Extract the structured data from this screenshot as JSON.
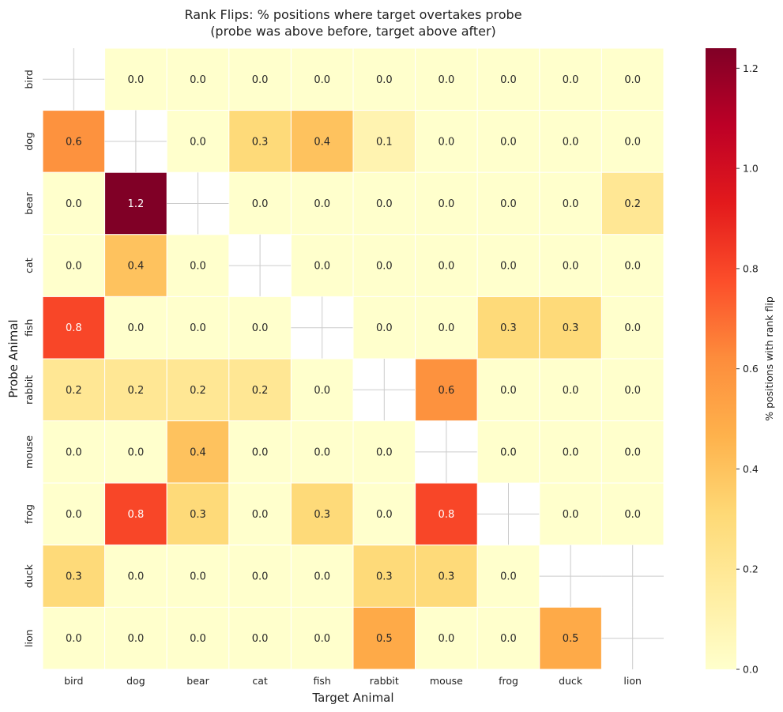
{
  "chart_data": {
    "type": "heatmap",
    "title_line1": "Rank Flips: % positions where target overtakes probe",
    "title_line2": "(probe was above before, target above after)",
    "xlabel": "Target Animal",
    "ylabel": "Probe Animal",
    "x_categories": [
      "bird",
      "dog",
      "bear",
      "cat",
      "fish",
      "rabbit",
      "mouse",
      "frog",
      "duck",
      "lion"
    ],
    "y_categories": [
      "bird",
      "dog",
      "bear",
      "cat",
      "fish",
      "rabbit",
      "mouse",
      "frog",
      "duck",
      "lion"
    ],
    "values": [
      [
        null,
        0.0,
        0.0,
        0.0,
        0.0,
        0.0,
        0.0,
        0.0,
        0.0,
        0.0
      ],
      [
        0.6,
        null,
        0.0,
        0.3,
        0.4,
        0.1,
        0.0,
        0.0,
        0.0,
        0.0
      ],
      [
        0.0,
        1.24,
        null,
        0.0,
        0.0,
        0.0,
        0.0,
        0.0,
        0.0,
        0.2
      ],
      [
        0.0,
        0.4,
        0.0,
        null,
        0.0,
        0.0,
        0.0,
        0.0,
        0.0,
        0.0
      ],
      [
        0.8,
        0.0,
        0.0,
        0.0,
        null,
        0.0,
        0.0,
        0.3,
        0.3,
        0.0
      ],
      [
        0.2,
        0.2,
        0.2,
        0.2,
        0.0,
        null,
        0.6,
        0.0,
        0.0,
        0.0
      ],
      [
        0.0,
        0.0,
        0.4,
        0.0,
        0.0,
        0.0,
        null,
        0.0,
        0.0,
        0.0
      ],
      [
        0.0,
        0.8,
        0.3,
        0.0,
        0.3,
        0.0,
        0.8,
        null,
        0.0,
        0.0
      ],
      [
        0.3,
        0.0,
        0.0,
        0.0,
        0.0,
        0.3,
        0.3,
        0.0,
        null,
        null
      ],
      [
        0.0,
        0.0,
        0.0,
        0.0,
        0.0,
        0.5,
        0.0,
        0.0,
        0.5,
        null
      ]
    ],
    "colorbar": {
      "label": "% positions with rank flip",
      "vmin": 0.0,
      "vmax": 1.24,
      "ticks": [
        0.0,
        0.2,
        0.4,
        0.6,
        0.8,
        1.0,
        1.2
      ],
      "colormap": "YlOrRd"
    }
  }
}
